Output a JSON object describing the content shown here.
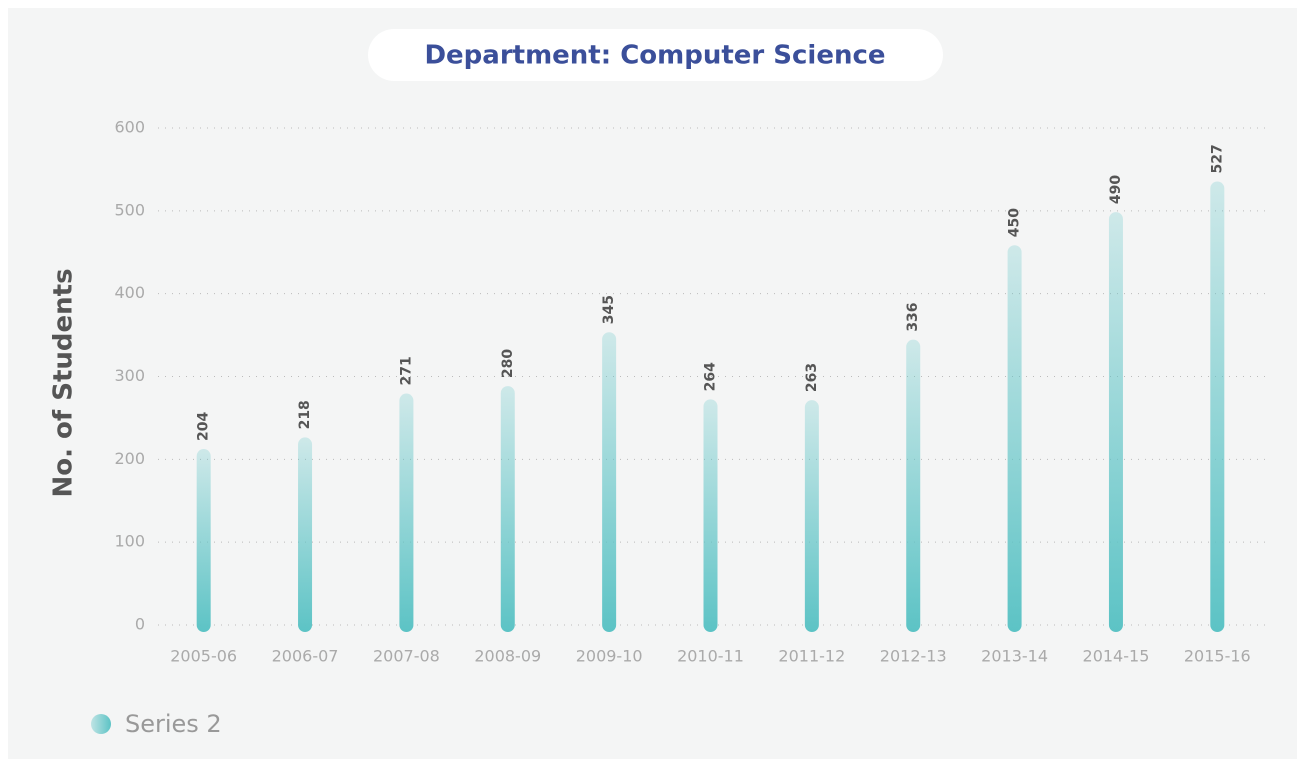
{
  "chart_data": {
    "type": "bar",
    "title": "Department: Computer Science",
    "y_label": "No. of Students",
    "categories": [
      "2005-06",
      "2006-07",
      "2007-08",
      "2008-09",
      "2009-10",
      "2010-11",
      "2011-12",
      "2012-13",
      "2013-14",
      "2014-15",
      "2015-16"
    ],
    "series": [
      {
        "name": "Series 2",
        "color": "#5cc3c5",
        "values": [
          204,
          218,
          271,
          280,
          345,
          264,
          263,
          336,
          450,
          490,
          527
        ]
      }
    ],
    "ylim": [
      0,
      600
    ],
    "yticks": [
      0,
      100,
      200,
      300,
      400,
      500,
      600
    ],
    "grid": true,
    "legend": "bottom-left"
  }
}
